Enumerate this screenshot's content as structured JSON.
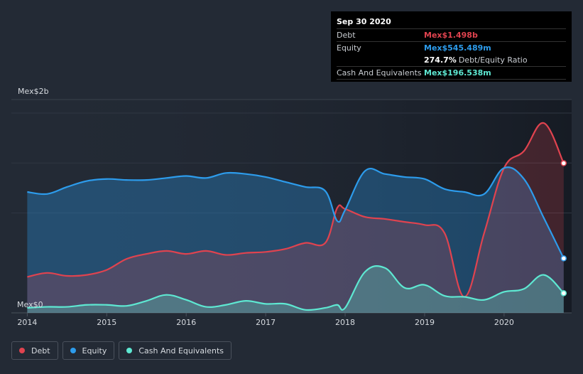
{
  "tooltip": {
    "date": "Sep 30 2020",
    "rows": [
      {
        "label": "Debt",
        "value": "Mex$1.498b",
        "color": "#e0434f"
      },
      {
        "label": "Equity",
        "value": "Mex$545.489m",
        "color": "#2d9cec"
      },
      {
        "label": "",
        "ratio_value": "274.7%",
        "ratio_label": "Debt/Equity Ratio"
      },
      {
        "label": "Cash And Equivalents",
        "value": "Mex$196.538m",
        "color": "#5ee8d2"
      }
    ]
  },
  "legend": [
    {
      "label": "Debt",
      "color": "#e0434f"
    },
    {
      "label": "Equity",
      "color": "#2d9cec"
    },
    {
      "label": "Cash And Equivalents",
      "color": "#5ee8d2"
    }
  ],
  "chart_data": {
    "type": "area",
    "y_top_label": "Mex$2b",
    "y_bottom_label": "Mex$0",
    "ylim": [
      0,
      2.0
    ],
    "xlim": [
      2013.8,
      2020.85
    ],
    "x_ticks": [
      "2014",
      "2015",
      "2016",
      "2017",
      "2018",
      "2019",
      "2020"
    ],
    "series": [
      {
        "name": "Debt",
        "color": "#e0434f",
        "x": [
          2014.0,
          2014.25,
          2014.5,
          2014.75,
          2015.0,
          2015.25,
          2015.5,
          2015.75,
          2016.0,
          2016.25,
          2016.5,
          2016.75,
          2017.0,
          2017.25,
          2017.5,
          2017.75,
          2017.9,
          2018.0,
          2018.25,
          2018.5,
          2018.75,
          2019.0,
          2019.25,
          2019.5,
          2019.75,
          2020.0,
          2020.25,
          2020.5,
          2020.75
        ],
        "y": [
          0.36,
          0.4,
          0.37,
          0.38,
          0.43,
          0.54,
          0.59,
          0.62,
          0.59,
          0.62,
          0.58,
          0.6,
          0.61,
          0.64,
          0.7,
          0.7,
          1.05,
          1.04,
          0.96,
          0.94,
          0.91,
          0.88,
          0.8,
          0.16,
          0.8,
          1.45,
          1.62,
          1.9,
          1.498
        ]
      },
      {
        "name": "Equity",
        "color": "#2d9cec",
        "x": [
          2014.0,
          2014.25,
          2014.5,
          2014.75,
          2015.0,
          2015.25,
          2015.5,
          2015.75,
          2016.0,
          2016.25,
          2016.5,
          2016.75,
          2017.0,
          2017.25,
          2017.5,
          2017.75,
          2017.9,
          2018.0,
          2018.25,
          2018.5,
          2018.75,
          2019.0,
          2019.25,
          2019.5,
          2019.75,
          2020.0,
          2020.25,
          2020.5,
          2020.75
        ],
        "y": [
          1.21,
          1.19,
          1.26,
          1.32,
          1.34,
          1.33,
          1.33,
          1.35,
          1.37,
          1.35,
          1.4,
          1.39,
          1.36,
          1.31,
          1.26,
          1.22,
          0.92,
          1.03,
          1.42,
          1.39,
          1.36,
          1.34,
          1.24,
          1.21,
          1.19,
          1.45,
          1.34,
          0.95,
          0.545
        ]
      },
      {
        "name": "Cash And Equivalents",
        "color": "#5ee8d2",
        "x": [
          2014.0,
          2014.25,
          2014.5,
          2014.75,
          2015.0,
          2015.25,
          2015.5,
          2015.75,
          2016.0,
          2016.25,
          2016.5,
          2016.75,
          2017.0,
          2017.25,
          2017.5,
          2017.75,
          2017.9,
          2018.0,
          2018.25,
          2018.5,
          2018.75,
          2019.0,
          2019.25,
          2019.5,
          2019.75,
          2020.0,
          2020.25,
          2020.5,
          2020.75
        ],
        "y": [
          0.05,
          0.06,
          0.06,
          0.08,
          0.08,
          0.07,
          0.12,
          0.18,
          0.13,
          0.06,
          0.08,
          0.12,
          0.09,
          0.09,
          0.03,
          0.05,
          0.08,
          0.05,
          0.41,
          0.45,
          0.25,
          0.28,
          0.17,
          0.16,
          0.13,
          0.21,
          0.24,
          0.38,
          0.197
        ]
      }
    ]
  }
}
